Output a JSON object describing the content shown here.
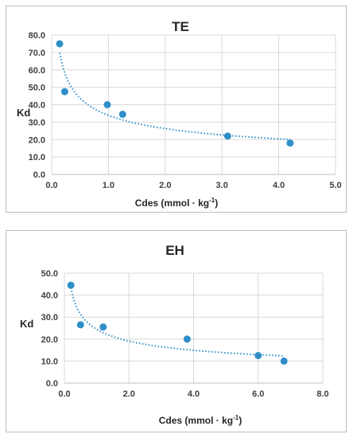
{
  "chart_data": [
    {
      "type": "scatter",
      "title": "TE",
      "xlabel": "Cdes (mmol · kg",
      "xlabel_sup": "-1",
      "xlabel_end": ")",
      "ylabel": "Kd",
      "xlim": [
        0,
        5
      ],
      "ylim": [
        0,
        80
      ],
      "x_ticks": [
        "0.0",
        "1.0",
        "2.0",
        "3.0",
        "4.0",
        "5.0"
      ],
      "y_ticks": [
        "0.0",
        "10.0",
        "20.0",
        "30.0",
        "40.0",
        "50.0",
        "60.0",
        "70.0",
        "80.0"
      ],
      "grid": true,
      "series": [
        {
          "points": [
            {
              "x": 0.14,
              "y": 75.0
            },
            {
              "x": 0.23,
              "y": 47.5
            },
            {
              "x": 0.98,
              "y": 40.0
            },
            {
              "x": 1.25,
              "y": 34.5
            },
            {
              "x": 3.1,
              "y": 22.0
            },
            {
              "x": 4.2,
              "y": 18.0
            }
          ],
          "color": "#2e8fc8",
          "trendline": {
            "type": "power",
            "x_range": [
              0.14,
              4.2
            ],
            "style": "dotted"
          }
        }
      ]
    },
    {
      "type": "scatter",
      "title": "EH",
      "xlabel": "Cdes (mmol · kg",
      "xlabel_sup": "-1",
      "xlabel_end": ")",
      "ylabel": "Kd",
      "xlim": [
        0,
        8
      ],
      "ylim": [
        0,
        50
      ],
      "x_ticks": [
        "0.0",
        "2.0",
        "4.0",
        "6.0",
        "8.0"
      ],
      "y_ticks": [
        "0.0",
        "10.0",
        "20.0",
        "30.0",
        "40.0",
        "50.0"
      ],
      "grid": true,
      "series": [
        {
          "points": [
            {
              "x": 0.2,
              "y": 44.5
            },
            {
              "x": 0.5,
              "y": 26.5
            },
            {
              "x": 1.2,
              "y": 25.5
            },
            {
              "x": 3.8,
              "y": 20.0
            },
            {
              "x": 6.0,
              "y": 12.5
            },
            {
              "x": 6.8,
              "y": 10.0
            }
          ],
          "color": "#2e8fc8",
          "trendline": {
            "type": "power",
            "x_range": [
              0.2,
              6.8
            ],
            "style": "dotted"
          }
        }
      ]
    }
  ]
}
